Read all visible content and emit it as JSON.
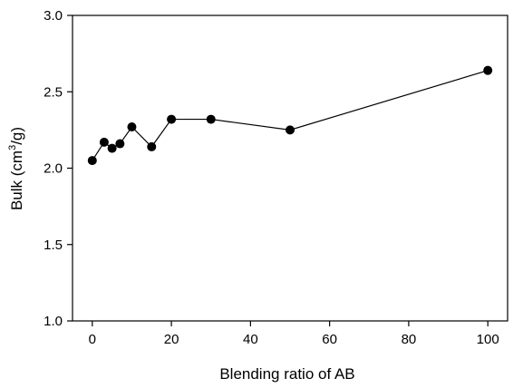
{
  "chart_data": {
    "type": "line",
    "xlabel": "Blending ratio of AB",
    "ylabel_parts": {
      "prefix": "Bulk (cm",
      "superscript": "3",
      "suffix": "/g)"
    },
    "xlim": [
      -5,
      105
    ],
    "ylim": [
      1.0,
      3.0
    ],
    "x_ticks": [
      0,
      20,
      40,
      60,
      80,
      100
    ],
    "y_ticks": [
      "1.0",
      "1.5",
      "2.0",
      "2.5",
      "3.0"
    ],
    "grid": false,
    "legend": "none",
    "series": [
      {
        "x": [
          0,
          3,
          5,
          7,
          10,
          15,
          20,
          30,
          50,
          100
        ],
        "y": [
          2.05,
          2.17,
          2.13,
          2.16,
          2.27,
          2.14,
          2.32,
          2.32,
          2.25,
          2.64
        ],
        "color": "#000000",
        "marker": "filled-circle"
      }
    ]
  }
}
